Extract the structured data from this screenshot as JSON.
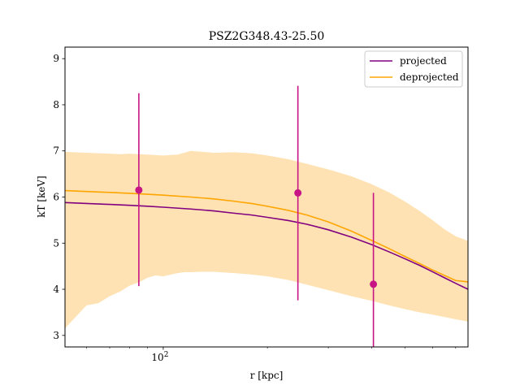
{
  "chart_data": {
    "type": "line",
    "title": "PSZ2G348.43-25.50",
    "xlabel": "r [kpc]",
    "ylabel": "kT [keV]",
    "x_scale": "log",
    "xlim": [
      52,
      760
    ],
    "ylim": [
      2.75,
      9.25
    ],
    "y_ticks": [
      3,
      4,
      5,
      6,
      7,
      8,
      9
    ],
    "x_ticks": [
      {
        "value": 100,
        "label": "10^2"
      }
    ],
    "x_minor_ticks": [
      60,
      70,
      80,
      90,
      200,
      300,
      400,
      500,
      600,
      700
    ],
    "grid": false,
    "legend_position": "upper-right",
    "legend": {
      "entries": [
        "projected",
        "deprojected"
      ]
    },
    "colors": {
      "projected": "#800080",
      "deprojected": "#ffa500",
      "band": "#ffe2b3",
      "data": "#c71585"
    },
    "series": [
      {
        "name": "projected",
        "x": [
          52,
          60,
          70,
          80,
          90,
          100,
          120,
          140,
          160,
          180,
          200,
          230,
          260,
          300,
          350,
          400,
          450,
          500,
          550,
          600,
          650,
          700,
          760
        ],
        "y": [
          5.88,
          5.86,
          5.84,
          5.82,
          5.8,
          5.78,
          5.74,
          5.7,
          5.65,
          5.61,
          5.56,
          5.49,
          5.41,
          5.29,
          5.13,
          4.97,
          4.81,
          4.66,
          4.52,
          4.38,
          4.25,
          4.13,
          4.0
        ]
      },
      {
        "name": "deprojected",
        "x": [
          52,
          60,
          70,
          80,
          90,
          100,
          120,
          140,
          160,
          180,
          200,
          230,
          260,
          300,
          350,
          400,
          450,
          500,
          550,
          600,
          650,
          700,
          760
        ],
        "y": [
          6.14,
          6.12,
          6.1,
          6.08,
          6.06,
          6.04,
          6.0,
          5.96,
          5.91,
          5.86,
          5.8,
          5.71,
          5.61,
          5.46,
          5.26,
          5.06,
          4.88,
          4.71,
          4.56,
          4.42,
          4.3,
          4.19,
          4.16
        ]
      },
      {
        "name": "",
        "role": "deprojected uncertainty band",
        "x": [
          52,
          55,
          60,
          65,
          70,
          75,
          80,
          85,
          90,
          95,
          100,
          110,
          115,
          120,
          130,
          140,
          160,
          180,
          200,
          230,
          260,
          300,
          350,
          400,
          450,
          500,
          550,
          600,
          650,
          700,
          760
        ],
        "lower": [
          3.15,
          3.35,
          3.65,
          3.7,
          3.85,
          3.95,
          4.08,
          4.15,
          4.25,
          4.3,
          4.28,
          4.35,
          4.37,
          4.37,
          4.38,
          4.38,
          4.35,
          4.32,
          4.28,
          4.2,
          4.1,
          3.98,
          3.85,
          3.75,
          3.65,
          3.57,
          3.5,
          3.45,
          3.4,
          3.35,
          3.3
        ],
        "upper": [
          6.98,
          6.97,
          6.96,
          6.95,
          6.94,
          6.93,
          6.94,
          6.93,
          6.92,
          6.91,
          6.9,
          6.92,
          6.96,
          7.0,
          6.98,
          6.96,
          6.97,
          6.95,
          6.9,
          6.82,
          6.72,
          6.6,
          6.45,
          6.28,
          6.1,
          5.9,
          5.7,
          5.5,
          5.3,
          5.15,
          5.05
        ]
      }
    ],
    "points": [
      {
        "x": 85,
        "y": 6.15,
        "ylow": 4.07,
        "yhigh": 8.25
      },
      {
        "x": 245,
        "y": 6.09,
        "ylow": 3.76,
        "yhigh": 8.41
      },
      {
        "x": 405,
        "y": 4.11,
        "ylow": 2.75,
        "yhigh": 6.09
      }
    ]
  }
}
